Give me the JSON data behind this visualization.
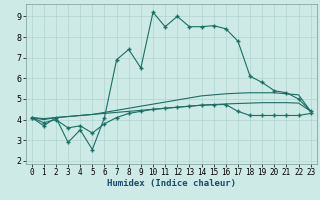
{
  "title": "",
  "xlabel": "Humidex (Indice chaleur)",
  "ylabel": "",
  "background_color": "#ceeae6",
  "grid_color": "#b0d4d0",
  "line_color": "#1a6e64",
  "xlim": [
    -0.5,
    23.5
  ],
  "ylim": [
    1.85,
    9.6
  ],
  "yticks": [
    2,
    3,
    4,
    5,
    6,
    7,
    8,
    9
  ],
  "xticks": [
    0,
    1,
    2,
    3,
    4,
    5,
    6,
    7,
    8,
    9,
    10,
    11,
    12,
    13,
    14,
    15,
    16,
    17,
    18,
    19,
    20,
    21,
    22,
    23
  ],
  "main_line_x": [
    0,
    1,
    2,
    3,
    4,
    5,
    6,
    7,
    8,
    9,
    10,
    11,
    12,
    13,
    14,
    15,
    16,
    17,
    18,
    19,
    20,
    21,
    22,
    23
  ],
  "main_line_y": [
    4.1,
    3.7,
    4.1,
    2.9,
    3.5,
    2.55,
    4.1,
    6.9,
    7.4,
    6.5,
    9.2,
    8.5,
    9.0,
    8.5,
    8.5,
    8.55,
    8.4,
    7.8,
    6.1,
    5.8,
    5.4,
    5.3,
    5.0,
    4.4
  ],
  "line2_x": [
    0,
    1,
    2,
    3,
    4,
    5,
    6,
    7,
    8,
    9,
    10,
    11,
    12,
    13,
    14,
    15,
    16,
    17,
    18,
    19,
    20,
    21,
    22,
    23
  ],
  "line2_y": [
    4.1,
    4.0,
    4.1,
    4.15,
    4.2,
    4.25,
    4.35,
    4.45,
    4.55,
    4.65,
    4.75,
    4.85,
    4.95,
    5.05,
    5.15,
    5.2,
    5.25,
    5.28,
    5.3,
    5.3,
    5.3,
    5.25,
    5.2,
    4.4
  ],
  "line3_x": [
    0,
    1,
    2,
    3,
    4,
    5,
    6,
    7,
    8,
    9,
    10,
    11,
    12,
    13,
    14,
    15,
    16,
    17,
    18,
    19,
    20,
    21,
    22,
    23
  ],
  "line3_y": [
    4.1,
    4.05,
    4.1,
    4.15,
    4.2,
    4.25,
    4.3,
    4.35,
    4.4,
    4.45,
    4.5,
    4.55,
    4.6,
    4.65,
    4.7,
    4.73,
    4.76,
    4.78,
    4.8,
    4.82,
    4.82,
    4.82,
    4.8,
    4.4
  ],
  "line4_x": [
    0,
    1,
    2,
    3,
    4,
    5,
    6,
    7,
    8,
    9,
    10,
    11,
    12,
    13,
    14,
    15,
    16,
    17,
    18,
    19,
    20,
    21,
    22,
    23
  ],
  "line4_y": [
    4.1,
    3.85,
    4.0,
    3.6,
    3.7,
    3.35,
    3.8,
    4.1,
    4.3,
    4.4,
    4.5,
    4.55,
    4.6,
    4.65,
    4.7,
    4.72,
    4.73,
    4.4,
    4.2,
    4.2,
    4.2,
    4.2,
    4.2,
    4.3
  ],
  "marker": "+",
  "markersize": 3,
  "linewidth": 0.8
}
